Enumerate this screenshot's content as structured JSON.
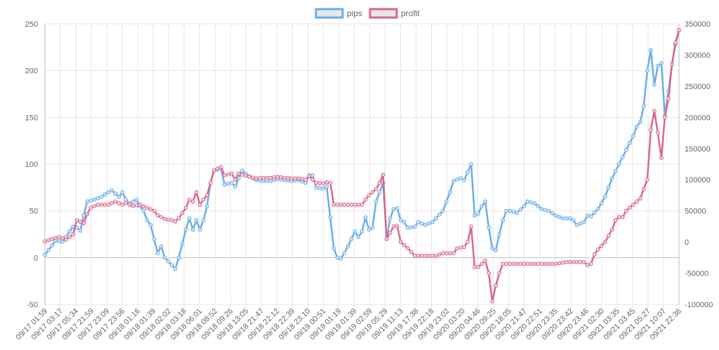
{
  "chart_data": {
    "type": "line",
    "legend_position": "top-center",
    "grid": true,
    "legend": [
      {
        "name": "pips",
        "color": "#6aaee8"
      },
      {
        "name": "profit",
        "color": "#d9668d"
      }
    ],
    "y_left": {
      "min": -50,
      "max": 250,
      "step": 50,
      "ticks": [
        "250",
        "200",
        "150",
        "100",
        "50",
        "0",
        "-50"
      ]
    },
    "y_right": {
      "min": -100000,
      "max": 350000,
      "step": 50000,
      "ticks": [
        "350000",
        "300000",
        "250000",
        "200000",
        "150000",
        "100000",
        "50000",
        "0",
        "-50000",
        "-100000"
      ]
    },
    "x_labels": [
      "09/17 01:59",
      "09/17 03:17",
      "09/17 05:34",
      "09/17 21:59",
      "09/17 23:09",
      "09/17 23:56",
      "09/18 01:16",
      "09/18 01:39",
      "09/18 02:02",
      "09/18 03:18",
      "09/18 06:01",
      "09/18 08:52",
      "09/18 09:26",
      "09/18 13:05",
      "09/18 21:47",
      "09/18 22:12",
      "09/18 22:39",
      "09/18 23:10",
      "09/19 00:51",
      "09/19 01:19",
      "09/19 01:39",
      "09/19 02:59",
      "09/19 05:29",
      "09/19 11:13",
      "09/19 17:38",
      "09/19 22:18",
      "09/19 23:02",
      "09/20 03:20",
      "09/20 04:46",
      "09/20 09:25",
      "09/20 18:05",
      "09/20 21:47",
      "09/20 22:51",
      "09/20 23:35",
      "09/20 23:42",
      "09/20 23:46",
      "09/21 02:30",
      "09/21 03:35",
      "09/21 03:45",
      "09/21 05:27",
      "09/21 10:07",
      "09/21 22:36"
    ],
    "pips_keypoints": [
      [
        0,
        3
      ],
      [
        6,
        18
      ],
      [
        10,
        17
      ],
      [
        14,
        28
      ],
      [
        16,
        33
      ],
      [
        18,
        32
      ],
      [
        20,
        29
      ],
      [
        22,
        45
      ],
      [
        24,
        60
      ],
      [
        28,
        62
      ],
      [
        32,
        65
      ],
      [
        36,
        70
      ],
      [
        38,
        72
      ],
      [
        42,
        65
      ],
      [
        44,
        70
      ],
      [
        46,
        62
      ],
      [
        48,
        58
      ],
      [
        50,
        60
      ],
      [
        52,
        62
      ],
      [
        54,
        55
      ],
      [
        56,
        50
      ],
      [
        58,
        40
      ],
      [
        60,
        35
      ],
      [
        62,
        20
      ],
      [
        64,
        5
      ],
      [
        66,
        12
      ],
      [
        68,
        0
      ],
      [
        72,
        -8
      ],
      [
        74,
        -12
      ],
      [
        76,
        0
      ],
      [
        80,
        30
      ],
      [
        82,
        42
      ],
      [
        84,
        30
      ],
      [
        86,
        40
      ],
      [
        88,
        30
      ],
      [
        90,
        40
      ],
      [
        92,
        55
      ],
      [
        94,
        80
      ],
      [
        96,
        93
      ],
      [
        100,
        95
      ],
      [
        102,
        78
      ],
      [
        106,
        80
      ],
      [
        108,
        76
      ],
      [
        110,
        85
      ],
      [
        112,
        93
      ],
      [
        116,
        87
      ],
      [
        120,
        83
      ],
      [
        124,
        82
      ],
      [
        128,
        82
      ],
      [
        132,
        84
      ],
      [
        136,
        83
      ],
      [
        140,
        82
      ],
      [
        144,
        83
      ],
      [
        148,
        80
      ],
      [
        150,
        88
      ],
      [
        152,
        88
      ],
      [
        154,
        75
      ],
      [
        158,
        74
      ],
      [
        160,
        76
      ],
      [
        162,
        43
      ],
      [
        164,
        10
      ],
      [
        166,
        0
      ],
      [
        168,
        -1
      ],
      [
        170,
        5
      ],
      [
        172,
        12
      ],
      [
        174,
        20
      ],
      [
        176,
        28
      ],
      [
        178,
        22
      ],
      [
        180,
        28
      ],
      [
        182,
        43
      ],
      [
        184,
        30
      ],
      [
        186,
        32
      ],
      [
        188,
        60
      ],
      [
        190,
        70
      ],
      [
        192,
        80
      ],
      [
        194,
        20
      ],
      [
        196,
        42
      ],
      [
        198,
        52
      ],
      [
        200,
        53
      ],
      [
        202,
        40
      ],
      [
        204,
        38
      ],
      [
        206,
        32
      ],
      [
        210,
        33
      ],
      [
        212,
        38
      ],
      [
        216,
        35
      ],
      [
        220,
        38
      ],
      [
        222,
        42
      ],
      [
        226,
        50
      ],
      [
        230,
        70
      ],
      [
        232,
        82
      ],
      [
        236,
        85
      ],
      [
        238,
        83
      ],
      [
        242,
        100
      ],
      [
        244,
        45
      ],
      [
        246,
        47
      ],
      [
        248,
        55
      ],
      [
        250,
        60
      ],
      [
        252,
        32
      ],
      [
        254,
        10
      ],
      [
        256,
        8
      ],
      [
        258,
        25
      ],
      [
        260,
        40
      ],
      [
        262,
        50
      ],
      [
        264,
        50
      ],
      [
        268,
        48
      ],
      [
        272,
        55
      ],
      [
        274,
        60
      ],
      [
        278,
        58
      ],
      [
        282,
        52
      ],
      [
        286,
        50
      ],
      [
        290,
        45
      ],
      [
        294,
        42
      ],
      [
        298,
        42
      ],
      [
        300,
        40
      ],
      [
        302,
        35
      ],
      [
        306,
        38
      ],
      [
        308,
        45
      ],
      [
        310,
        44
      ],
      [
        314,
        52
      ],
      [
        318,
        65
      ],
      [
        322,
        85
      ],
      [
        326,
        100
      ],
      [
        330,
        115
      ],
      [
        334,
        130
      ],
      [
        336,
        140
      ],
      [
        338,
        145
      ],
      [
        340,
        162
      ],
      [
        342,
        200
      ],
      [
        344,
        222
      ],
      [
        346,
        185
      ],
      [
        348,
        205
      ],
      [
        350,
        208
      ],
      [
        352,
        152
      ],
      [
        354,
        178
      ],
      [
        356,
        207
      ],
      [
        358,
        228
      ],
      [
        360,
        243
      ]
    ],
    "profit_keypoints": [
      [
        0,
        1000
      ],
      [
        4,
        5000
      ],
      [
        8,
        8000
      ],
      [
        12,
        4000
      ],
      [
        16,
        12000
      ],
      [
        18,
        35000
      ],
      [
        22,
        30000
      ],
      [
        24,
        45000
      ],
      [
        26,
        55000
      ],
      [
        30,
        60000
      ],
      [
        36,
        60000
      ],
      [
        40,
        65000
      ],
      [
        44,
        60000
      ],
      [
        46,
        63000
      ],
      [
        48,
        60000
      ],
      [
        50,
        58000
      ],
      [
        54,
        60000
      ],
      [
        58,
        55000
      ],
      [
        62,
        50000
      ],
      [
        64,
        43000
      ],
      [
        68,
        37000
      ],
      [
        72,
        35000
      ],
      [
        74,
        33000
      ],
      [
        76,
        38000
      ],
      [
        80,
        55000
      ],
      [
        82,
        68000
      ],
      [
        84,
        65000
      ],
      [
        86,
        80000
      ],
      [
        88,
        60000
      ],
      [
        90,
        68000
      ],
      [
        92,
        75000
      ],
      [
        94,
        95000
      ],
      [
        96,
        115000
      ],
      [
        98,
        118000
      ],
      [
        100,
        120000
      ],
      [
        102,
        107000
      ],
      [
        106,
        110000
      ],
      [
        108,
        100000
      ],
      [
        110,
        110000
      ],
      [
        112,
        108000
      ],
      [
        116,
        105000
      ],
      [
        120,
        102000
      ],
      [
        124,
        103000
      ],
      [
        128,
        103000
      ],
      [
        132,
        105000
      ],
      [
        136,
        103000
      ],
      [
        140,
        102000
      ],
      [
        144,
        102000
      ],
      [
        148,
        100000
      ],
      [
        150,
        106000
      ],
      [
        152,
        100000
      ],
      [
        154,
        95000
      ],
      [
        158,
        94000
      ],
      [
        160,
        96000
      ],
      [
        162,
        95000
      ],
      [
        164,
        60000
      ],
      [
        170,
        60000
      ],
      [
        176,
        60000
      ],
      [
        180,
        60000
      ],
      [
        182,
        68000
      ],
      [
        184,
        75000
      ],
      [
        186,
        80000
      ],
      [
        188,
        85000
      ],
      [
        190,
        95000
      ],
      [
        192,
        108000
      ],
      [
        194,
        5000
      ],
      [
        196,
        15000
      ],
      [
        198,
        25000
      ],
      [
        200,
        26000
      ],
      [
        202,
        0
      ],
      [
        206,
        -10000
      ],
      [
        210,
        -22000
      ],
      [
        216,
        -22000
      ],
      [
        222,
        -22000
      ],
      [
        226,
        -18000
      ],
      [
        232,
        -18000
      ],
      [
        234,
        -10000
      ],
      [
        238,
        -8000
      ],
      [
        240,
        0
      ],
      [
        242,
        25000
      ],
      [
        244,
        -40000
      ],
      [
        246,
        -40000
      ],
      [
        248,
        -35000
      ],
      [
        250,
        -30000
      ],
      [
        252,
        -50000
      ],
      [
        254,
        -95000
      ],
      [
        256,
        -70000
      ],
      [
        258,
        -50000
      ],
      [
        260,
        -35000
      ],
      [
        264,
        -35000
      ],
      [
        270,
        -35000
      ],
      [
        280,
        -35000
      ],
      [
        290,
        -35000
      ],
      [
        296,
        -32000
      ],
      [
        306,
        -32000
      ],
      [
        308,
        -37000
      ],
      [
        310,
        -35000
      ],
      [
        312,
        -20000
      ],
      [
        314,
        -12000
      ],
      [
        318,
        0
      ],
      [
        322,
        20000
      ],
      [
        324,
        35000
      ],
      [
        326,
        40000
      ],
      [
        328,
        40000
      ],
      [
        330,
        50000
      ],
      [
        334,
        60000
      ],
      [
        338,
        70000
      ],
      [
        340,
        85000
      ],
      [
        342,
        100000
      ],
      [
        344,
        180000
      ],
      [
        346,
        210000
      ],
      [
        348,
        175000
      ],
      [
        350,
        135000
      ],
      [
        352,
        200000
      ],
      [
        354,
        230000
      ],
      [
        356,
        285000
      ],
      [
        358,
        320000
      ],
      [
        360,
        340000
      ]
    ]
  }
}
